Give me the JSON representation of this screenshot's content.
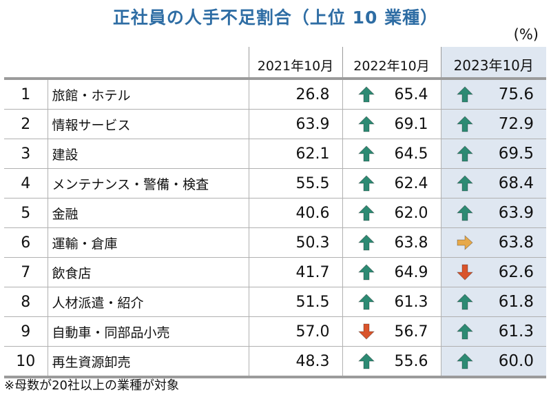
{
  "title": "正社員の人手不足割合（上位 10 業種）",
  "unit": "(%)",
  "footnote": "※母数が20社以上の業種が対象",
  "colors": {
    "title": "#2e6da4",
    "up": "#2d8a73",
    "down": "#d9542b",
    "flat": "#e7a94a",
    "highlight": "#dfe7f1"
  },
  "chart_data": {
    "type": "table",
    "title": "正社員の人手不足割合（上位 10 業種）",
    "unit": "(%)",
    "columns": [
      "2021年10月",
      "2022年10月",
      "2023年10月"
    ],
    "rows": [
      {
        "rank": "1",
        "name": "旅館・ホテル",
        "values": [
          "26.8",
          "65.4",
          "75.6"
        ],
        "trend": [
          "",
          "up",
          "up"
        ]
      },
      {
        "rank": "2",
        "name": "情報サービス",
        "values": [
          "63.9",
          "69.1",
          "72.9"
        ],
        "trend": [
          "",
          "up",
          "up"
        ]
      },
      {
        "rank": "3",
        "name": "建設",
        "values": [
          "62.1",
          "64.5",
          "69.5"
        ],
        "trend": [
          "",
          "up",
          "up"
        ]
      },
      {
        "rank": "4",
        "name": "メンテナンス・警備・検査",
        "values": [
          "55.5",
          "62.4",
          "68.4"
        ],
        "trend": [
          "",
          "up",
          "up"
        ]
      },
      {
        "rank": "5",
        "name": "金融",
        "values": [
          "40.6",
          "62.0",
          "63.9"
        ],
        "trend": [
          "",
          "up",
          "up"
        ]
      },
      {
        "rank": "6",
        "name": "運輸・倉庫",
        "values": [
          "50.3",
          "63.8",
          "63.8"
        ],
        "trend": [
          "",
          "up",
          "flat"
        ]
      },
      {
        "rank": "7",
        "name": "飲食店",
        "values": [
          "41.7",
          "64.9",
          "62.6"
        ],
        "trend": [
          "",
          "up",
          "down"
        ]
      },
      {
        "rank": "8",
        "name": "人材派遣・紹介",
        "values": [
          "51.5",
          "61.3",
          "61.8"
        ],
        "trend": [
          "",
          "up",
          "up"
        ]
      },
      {
        "rank": "9",
        "name": "自動車・同部品小売",
        "values": [
          "57.0",
          "56.7",
          "61.3"
        ],
        "trend": [
          "",
          "down",
          "up"
        ]
      },
      {
        "rank": "10",
        "name": "再生資源卸売",
        "values": [
          "48.3",
          "55.6",
          "60.0"
        ],
        "trend": [
          "",
          "up",
          "up"
        ]
      }
    ]
  }
}
